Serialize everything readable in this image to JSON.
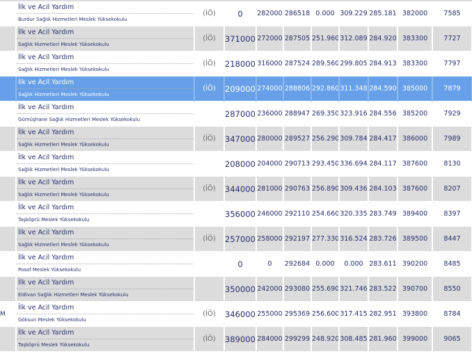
{
  "colors": {
    "row_alt": "#dcdcdc",
    "selected": "#67a0e8",
    "text": "#2b2d6b"
  },
  "rows": [
    {
      "c0": "",
      "program": "İlk ve Acil Yardım",
      "university": "Burdur Sağlık Hizmetleri Meslek Yüksekokulu",
      "ik": "(İÖ)",
      "v": [
        "0",
        "282000",
        "286518",
        "0.000",
        "309.229",
        "285.181",
        "382000",
        "7585"
      ],
      "style": "odd"
    },
    {
      "c0": "",
      "program": "İlk ve Acil Yardım",
      "university": "Sağlık Hizmetleri Meslek Yüksekokulu",
      "ik": "(İÖ)",
      "v": [
        "371000",
        "272000",
        "287505",
        "251.960",
        "312.089",
        "284.920",
        "383300",
        "7727"
      ],
      "style": "even"
    },
    {
      "c0": "",
      "program": "İlk ve Acil Yardım",
      "university": "Sağlık Hizmetleri Meslek Yüksekokulu",
      "ik": "(İÖ)",
      "v": [
        "218000",
        "316000",
        "287524",
        "289.560",
        "299.805",
        "284.913",
        "383300",
        "7797"
      ],
      "style": "odd"
    },
    {
      "c0": "",
      "program": "İlk ve Acil Yardım",
      "university": "Sağlık Hizmetleri Meslek Yüksekokulu",
      "ik": "(İÖ)",
      "v": [
        "209000",
        "274000",
        "288806",
        "292.860",
        "311.348",
        "284.590",
        "385000",
        "7879"
      ],
      "style": "sel"
    },
    {
      "c0": "",
      "program": "İlk ve Acil Yardım",
      "university": "Gümüşhane Sağlık Hizmetleri Meslek Yüksekokulu",
      "ik": "",
      "v": [
        "287000",
        "236000",
        "288947",
        "269.350",
        "323.916",
        "284.556",
        "385200",
        "7929"
      ],
      "style": "odd"
    },
    {
      "c0": "",
      "program": "İlk ve Acil Yardım",
      "university": "Sağlık Hizmetleri Meslek Yüksekokulu",
      "ik": "(İÖ)",
      "v": [
        "347000",
        "280000",
        "289527",
        "256.290",
        "309.784",
        "284.417",
        "386000",
        "7989"
      ],
      "style": "even"
    },
    {
      "c0": "",
      "program": "İlk ve Acil Yardım",
      "university": "Sağlık Hizmetleri Meslek Yüksekokulu",
      "ik": "",
      "v": [
        "208000",
        "204000",
        "290713",
        "293.450",
        "336.694",
        "284.117",
        "387600",
        "8130"
      ],
      "style": "odd"
    },
    {
      "c0": "",
      "program": "İlk ve Acil Yardım",
      "university": "Sağlık Hizmetleri Meslek Yüksekokulu",
      "ik": "(İÖ)",
      "v": [
        "344000",
        "281000",
        "290763",
        "256.890",
        "309.436",
        "284.103",
        "387600",
        "8207"
      ],
      "style": "even"
    },
    {
      "c0": "",
      "program": "İlk ve Acil Yardım",
      "university": "Taşköprü Meslek Yüksekokulu",
      "ik": "",
      "v": [
        "356000",
        "246000",
        "292110",
        "254.660",
        "320.335",
        "283.749",
        "389400",
        "8397"
      ],
      "style": "odd"
    },
    {
      "c0": "",
      "program": "İlk ve Acil Yardım",
      "university": "Sağlık Hizmetleri Meslek Yüksekokulu",
      "ik": "(İÖ)",
      "v": [
        "257000",
        "258000",
        "292197",
        "277.330",
        "316.524",
        "283.726",
        "389500",
        "8447"
      ],
      "style": "even"
    },
    {
      "c0": "",
      "program": "İlk ve Acil Yardım",
      "university": "Posof Meslek Yüksekokulu",
      "ik": "",
      "v": [
        "0",
        "0",
        "292684",
        "0.000",
        "0.000",
        "283.611",
        "390200",
        "8485"
      ],
      "style": "odd"
    },
    {
      "c0": "",
      "program": "İlk ve Acil Yardım",
      "university": "Eldivan Sağlık Hizmetleri Meslek Yüksekokulu",
      "ik": "",
      "v": [
        "350000",
        "242000",
        "293080",
        "255.690",
        "321.746",
        "283.522",
        "390700",
        "8550"
      ],
      "style": "even"
    },
    {
      "c0": "M",
      "program": "İlk ve Acil Yardım",
      "university": "Göksun Meslek Yüksekokulu",
      "ik": "(İÖ)",
      "v": [
        "346000",
        "255000",
        "295369",
        "256.600",
        "317.415",
        "282.951",
        "393800",
        "8784"
      ],
      "style": "odd"
    },
    {
      "c0": "",
      "program": "İlk ve Acil Yardım",
      "university": "Taşköprü Meslek Yüksekokulu",
      "ik": "(İÖ)",
      "v": [
        "389000",
        "284000",
        "299299",
        "248.920",
        "308.485",
        "281.960",
        "399000",
        "9065"
      ],
      "style": "even"
    }
  ]
}
